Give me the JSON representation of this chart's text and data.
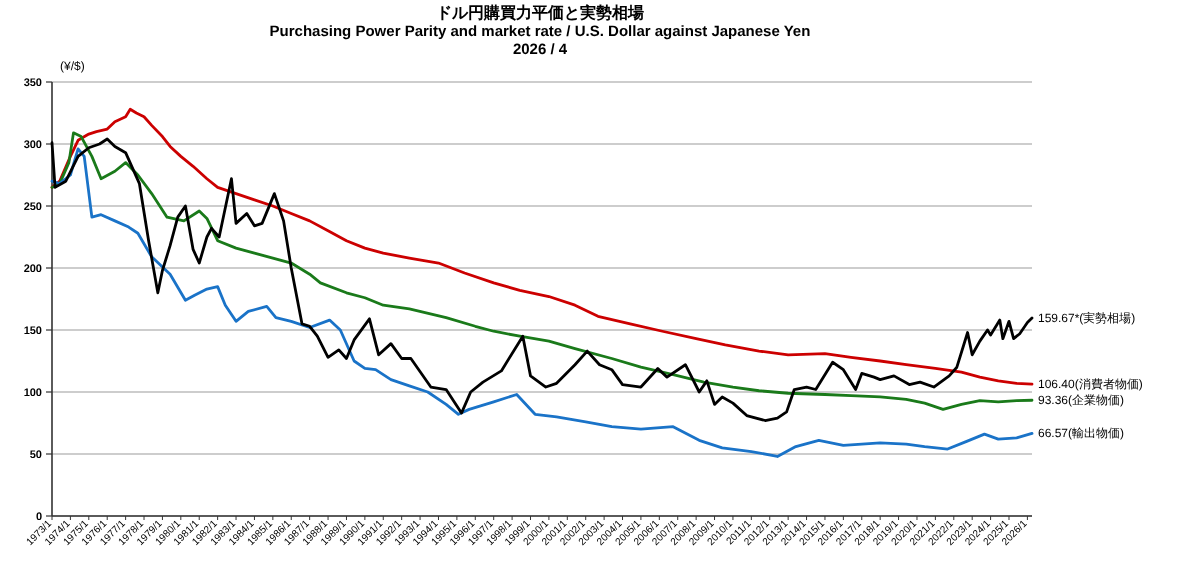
{
  "chart_data": {
    "type": "line",
    "title": "ドル円購買力平価と実勢相場",
    "subtitle": "Purchasing Power Parity and market rate / U.S. Dollar against Japanese Yen",
    "annotations": [
      "2026 / 4"
    ],
    "ylabel": "(¥/$)",
    "grid": "y",
    "xlim": [
      "1973-01",
      "2026-04"
    ],
    "ylim": [
      0,
      350
    ],
    "yticks": [
      0,
      50,
      100,
      150,
      200,
      250,
      300,
      350
    ],
    "xticks": [
      {
        "value": "1973-01",
        "label": "1973/1"
      },
      {
        "value": "1974-01",
        "label": "1974/1"
      },
      {
        "value": "1975-01",
        "label": "1975/1"
      },
      {
        "value": "1976-01",
        "label": "1976/1"
      },
      {
        "value": "1977-01",
        "label": "1977/1"
      },
      {
        "value": "1978-01",
        "label": "1978/1"
      },
      {
        "value": "1979-01",
        "label": "1979/1"
      },
      {
        "value": "1980-01",
        "label": "1980/1"
      },
      {
        "value": "1981-01",
        "label": "1981/1"
      },
      {
        "value": "1982-01",
        "label": "1982/1"
      },
      {
        "value": "1983-01",
        "label": "1983/1"
      },
      {
        "value": "1984-01",
        "label": "1984/1"
      },
      {
        "value": "1985-01",
        "label": "1985/1"
      },
      {
        "value": "1986-01",
        "label": "1986/1"
      },
      {
        "value": "1987-01",
        "label": "1987/1"
      },
      {
        "value": "1988-01",
        "label": "1988/1"
      },
      {
        "value": "1989-01",
        "label": "1989/1"
      },
      {
        "value": "1990-01",
        "label": "1990/1"
      },
      {
        "value": "1991-01",
        "label": "1991/1"
      },
      {
        "value": "1992-01",
        "label": "1992/1"
      },
      {
        "value": "1993-01",
        "label": "1993/1"
      },
      {
        "value": "1994-01",
        "label": "1994/1"
      },
      {
        "value": "1995-01",
        "label": "1995/1"
      },
      {
        "value": "1996-01",
        "label": "1996/1"
      },
      {
        "value": "1997-01",
        "label": "1997/1"
      },
      {
        "value": "1998-01",
        "label": "1998/1"
      },
      {
        "value": "1999-01",
        "label": "1999/1"
      },
      {
        "value": "2000-01",
        "label": "2000/1"
      },
      {
        "value": "2001-01",
        "label": "2001/1"
      },
      {
        "value": "2002-01",
        "label": "2002/1"
      },
      {
        "value": "2003-01",
        "label": "2003/1"
      },
      {
        "value": "2004-01",
        "label": "2004/1"
      },
      {
        "value": "2005-01",
        "label": "2005/1"
      },
      {
        "value": "2006-01",
        "label": "2006/1"
      },
      {
        "value": "2007-01",
        "label": "2007/1"
      },
      {
        "value": "2008-01",
        "label": "2008/1"
      },
      {
        "value": "2009-01",
        "label": "2009/1"
      },
      {
        "value": "2010-01",
        "label": "2010/1"
      },
      {
        "value": "2011-01",
        "label": "2011/1"
      },
      {
        "value": "2012-01",
        "label": "2012/1"
      },
      {
        "value": "2013-01",
        "label": "2013/1"
      },
      {
        "value": "2014-01",
        "label": "2014/1"
      },
      {
        "value": "2015-01",
        "label": "2015/1"
      },
      {
        "value": "2016-01",
        "label": "2016/1"
      },
      {
        "value": "2017-01",
        "label": "2017/1"
      },
      {
        "value": "2018-01",
        "label": "2018/1"
      },
      {
        "value": "2019-01",
        "label": "2019/1"
      },
      {
        "value": "2020-01",
        "label": "2020/1"
      },
      {
        "value": "2021-01",
        "label": "2021/1"
      },
      {
        "value": "2022-01",
        "label": "2022/1"
      },
      {
        "value": "2023-01",
        "label": "2023/1"
      },
      {
        "value": "2024-01",
        "label": "2024/1"
      },
      {
        "value": "2025-01",
        "label": "2025/1"
      },
      {
        "value": "2026-01",
        "label": "2026/1"
      }
    ],
    "series": [
      {
        "name": "106.40(消費者物価)",
        "color": "#cc0000",
        "x": [
          "1973-01",
          "1973-06",
          "1974-01",
          "1974-06",
          "1975-01",
          "1975-06",
          "1976-01",
          "1976-06",
          "1977-01",
          "1977-04",
          "1977-08",
          "1978-01",
          "1978-06",
          "1979-01",
          "1979-06",
          "1980-01",
          "1980-09",
          "1981-06",
          "1982-01",
          "1983-01",
          "1984-01",
          "1985-01",
          "1986-01",
          "1987-01",
          "1988-01",
          "1989-01",
          "1990-01",
          "1991-01",
          "1992-06",
          "1994-01",
          "1995-06",
          "1997-01",
          "1998-06",
          "2000-01",
          "2001-06",
          "2002-09",
          "2004-06",
          "2006-03",
          "2008-01",
          "2009-08",
          "2011-06",
          "2013-01",
          "2015-01",
          "2016-06",
          "2018-01",
          "2019-06",
          "2021-01",
          "2022-06",
          "2023-06",
          "2024-06",
          "2025-06",
          "2026-04"
        ],
        "values": [
          265,
          270,
          290,
          303,
          308,
          310,
          312,
          318,
          322,
          328,
          325,
          322,
          315,
          306,
          298,
          290,
          282,
          272,
          265,
          260,
          255,
          250,
          244,
          238,
          230,
          222,
          216,
          212,
          208,
          204,
          196,
          188,
          182,
          177,
          170,
          161,
          155,
          149,
          143,
          138,
          133,
          130,
          131,
          128,
          125,
          122,
          119,
          116,
          112,
          109,
          107,
          106.4
        ]
      },
      {
        "name": "93.36(企業物価)",
        "color": "#1a7a1a",
        "x": [
          "1973-01",
          "1973-06",
          "1973-12",
          "1974-03",
          "1974-08",
          "1975-03",
          "1975-09",
          "1976-06",
          "1977-01",
          "1977-09",
          "1978-06",
          "1979-04",
          "1980-03",
          "1981-01",
          "1981-06",
          "1982-01",
          "1983-01",
          "1984-01",
          "1985-01",
          "1986-01",
          "1987-01",
          "1987-08",
          "1989-01",
          "1990-01",
          "1991-01",
          "1992-06",
          "1994-06",
          "1996-01",
          "1997-01",
          "1998-06",
          "2000-01",
          "2001-06",
          "2003-06",
          "2005-01",
          "2006-10",
          "2008-06",
          "2010-01",
          "2011-06",
          "2013-01",
          "2015-01",
          "2016-06",
          "2018-01",
          "2019-06",
          "2020-06",
          "2021-06",
          "2022-06",
          "2023-06",
          "2024-06",
          "2025-06",
          "2026-04"
        ],
        "values": [
          265,
          268,
          285,
          309,
          306,
          290,
          272,
          278,
          285,
          275,
          260,
          241,
          238,
          246,
          240,
          222,
          216,
          212,
          208,
          204,
          195,
          188,
          180,
          176,
          170,
          167,
          160,
          153,
          149,
          145,
          141,
          135,
          127,
          120,
          114,
          108,
          104,
          101,
          99,
          98,
          97,
          96,
          94,
          91,
          86,
          90,
          93,
          92,
          93,
          93.36
        ]
      },
      {
        "name": "66.57(輸出物価)",
        "color": "#1a73c8",
        "x": [
          "1973-01",
          "1973-06",
          "1974-01",
          "1974-06",
          "1974-10",
          "1975-03",
          "1975-09",
          "1976-06",
          "1977-03",
          "1977-09",
          "1978-06",
          "1979-06",
          "1980-04",
          "1980-10",
          "1981-06",
          "1982-01",
          "1982-06",
          "1983-01",
          "1983-09",
          "1984-09",
          "1985-03",
          "1986-01",
          "1987-01",
          "1988-02",
          "1988-09",
          "1989-06",
          "1990-01",
          "1990-08",
          "1991-06",
          "1992-06",
          "1993-06",
          "1994-06",
          "1995-02",
          "1995-09",
          "1997-01",
          "1998-04",
          "1999-04",
          "2000-06",
          "2002-01",
          "2003-06",
          "2005-01",
          "2006-10",
          "2008-03",
          "2009-06",
          "2011-01",
          "2012-06",
          "2013-06",
          "2014-09",
          "2016-01",
          "2018-01",
          "2019-06",
          "2020-06",
          "2021-09",
          "2022-09",
          "2023-09",
          "2024-06",
          "2025-06",
          "2026-04"
        ],
        "values": [
          270,
          268,
          275,
          296,
          290,
          241,
          243,
          238,
          233,
          228,
          209,
          195,
          174,
          178,
          183,
          185,
          170,
          157,
          165,
          169,
          160,
          157,
          152,
          158,
          150,
          125,
          119,
          118,
          110,
          105,
          100,
          90,
          82,
          86,
          92,
          98,
          82,
          80,
          76,
          72,
          70,
          72,
          61,
          55,
          52,
          48,
          56,
          61,
          57,
          59,
          58,
          56,
          54,
          60,
          66,
          62,
          63,
          66.57
        ]
      },
      {
        "name": "159.67*(実勢相場)",
        "color": "#000000",
        "x": [
          "1973-01",
          "1973-03",
          "1973-10",
          "1974-06",
          "1975-01",
          "1975-08",
          "1976-01",
          "1976-06",
          "1977-01",
          "1977-10",
          "1978-04",
          "1978-10",
          "1979-01",
          "1979-06",
          "1979-11",
          "1980-04",
          "1980-09",
          "1981-01",
          "1981-06",
          "1981-09",
          "1982-02",
          "1982-10",
          "1983-01",
          "1983-08",
          "1984-01",
          "1984-06",
          "1985-02",
          "1985-08",
          "1986-01",
          "1986-08",
          "1987-01",
          "1987-06",
          "1988-01",
          "1988-08",
          "1989-01",
          "1989-06",
          "1990-04",
          "1990-10",
          "1991-06",
          "1992-01",
          "1992-07",
          "1993-08",
          "1994-06",
          "1995-04",
          "1995-10",
          "1996-06",
          "1997-06",
          "1998-08",
          "1999-01",
          "1999-11",
          "2000-06",
          "2001-06",
          "2002-02",
          "2002-10",
          "2003-06",
          "2004-01",
          "2005-01",
          "2005-12",
          "2006-06",
          "2007-06",
          "2008-03",
          "2008-08",
          "2009-01",
          "2009-06",
          "2010-01",
          "2010-10",
          "2011-10",
          "2012-06",
          "2012-12",
          "2013-05",
          "2014-01",
          "2014-07",
          "2015-06",
          "2016-01",
          "2016-09",
          "2017-01",
          "2017-09",
          "2018-01",
          "2018-10",
          "2019-08",
          "2020-03",
          "2020-12",
          "2021-10",
          "2022-03",
          "2022-10",
          "2023-01",
          "2023-06",
          "2023-11",
          "2024-01",
          "2024-07",
          "2024-09",
          "2025-01",
          "2025-04",
          "2025-08",
          "2026-01",
          "2026-04"
        ],
        "values": [
          301,
          265,
          270,
          290,
          297,
          300,
          304,
          298,
          293,
          268,
          222,
          180,
          198,
          218,
          241,
          250,
          215,
          204,
          225,
          232,
          225,
          272,
          236,
          244,
          234,
          236,
          260,
          238,
          200,
          155,
          153,
          145,
          128,
          134,
          127,
          142,
          159,
          130,
          139,
          127,
          127,
          104,
          102,
          83,
          100,
          108,
          117,
          145,
          113,
          104,
          107,
          122,
          133,
          122,
          118,
          106,
          104,
          119,
          112,
          122,
          100,
          109,
          90,
          96,
          91,
          81,
          77,
          79,
          84,
          102,
          104,
          102,
          124,
          118,
          102,
          115,
          112,
          110,
          113,
          106,
          108,
          104,
          113,
          120,
          148,
          130,
          141,
          150,
          146,
          158,
          143,
          157,
          143,
          147,
          156,
          159.67
        ]
      }
    ]
  }
}
